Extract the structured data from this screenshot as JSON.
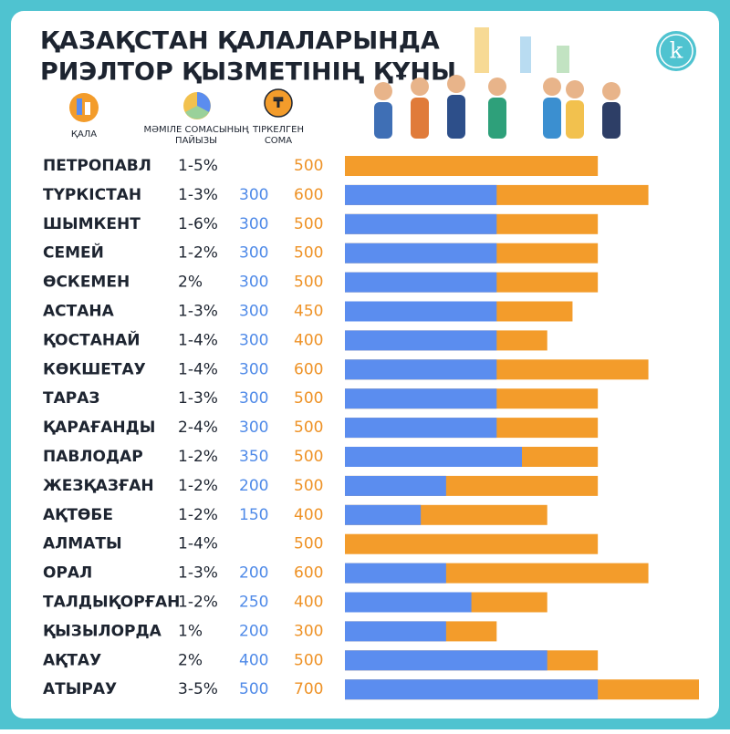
{
  "chart_data": {
    "type": "bar",
    "title_lines": [
      "ҚАЗАҚСТАН ҚАЛАЛАРЫНДА",
      "РИЭЛТОР ҚЫЗМЕТІНІҢ ҚҰНЫ"
    ],
    "logo": "k",
    "column_headers": {
      "city": "ҚАЛА",
      "percent": "МӘМІЛЕ СОМАСЫНЫҢ ПАЙЫЗЫ",
      "fixed": "ТІРКЕЛГЕН СОМА"
    },
    "categories": [
      "ПЕТРОПАВЛ",
      "ТҮРКІСТАН",
      "ШЫМКЕНТ",
      "СЕМЕЙ",
      "ӨСКЕМЕН",
      "АСТАНА",
      "ҚОСТАНАЙ",
      "КӨКШЕТАУ",
      "ТАРАЗ",
      "ҚАРАҒАНДЫ",
      "ПАВЛОДАР",
      "ЖЕЗҚАЗҒАН",
      "АҚТӨБЕ",
      "АЛМАТЫ",
      "ОРАЛ",
      "ТАЛДЫҚОРҒАН",
      "ҚЫЗЫЛОРДА",
      "АҚТАУ",
      "АТЫРАУ"
    ],
    "percents": [
      "1-5%",
      "1-3%",
      "1-6%",
      "1-2%",
      "2%",
      "1-3%",
      "1-4%",
      "1-4%",
      "1-3%",
      "2-4%",
      "1-2%",
      "1-2%",
      "1-2%",
      "1-4%",
      "1-3%",
      "1-2%",
      "1%",
      "2%",
      "3-5%"
    ],
    "series": [
      {
        "color": "#f39c2b",
        "values": [
          500,
          600,
          500,
          500,
          500,
          450,
          400,
          600,
          500,
          500,
          500,
          500,
          400,
          500,
          600,
          400,
          300,
          500,
          700
        ]
      },
      {
        "color": "#5b8def",
        "values": [
          null,
          300,
          300,
          300,
          300,
          300,
          300,
          300,
          300,
          300,
          350,
          200,
          150,
          null,
          200,
          250,
          200,
          400,
          500
        ]
      }
    ],
    "xlim": [
      0,
      700
    ]
  }
}
